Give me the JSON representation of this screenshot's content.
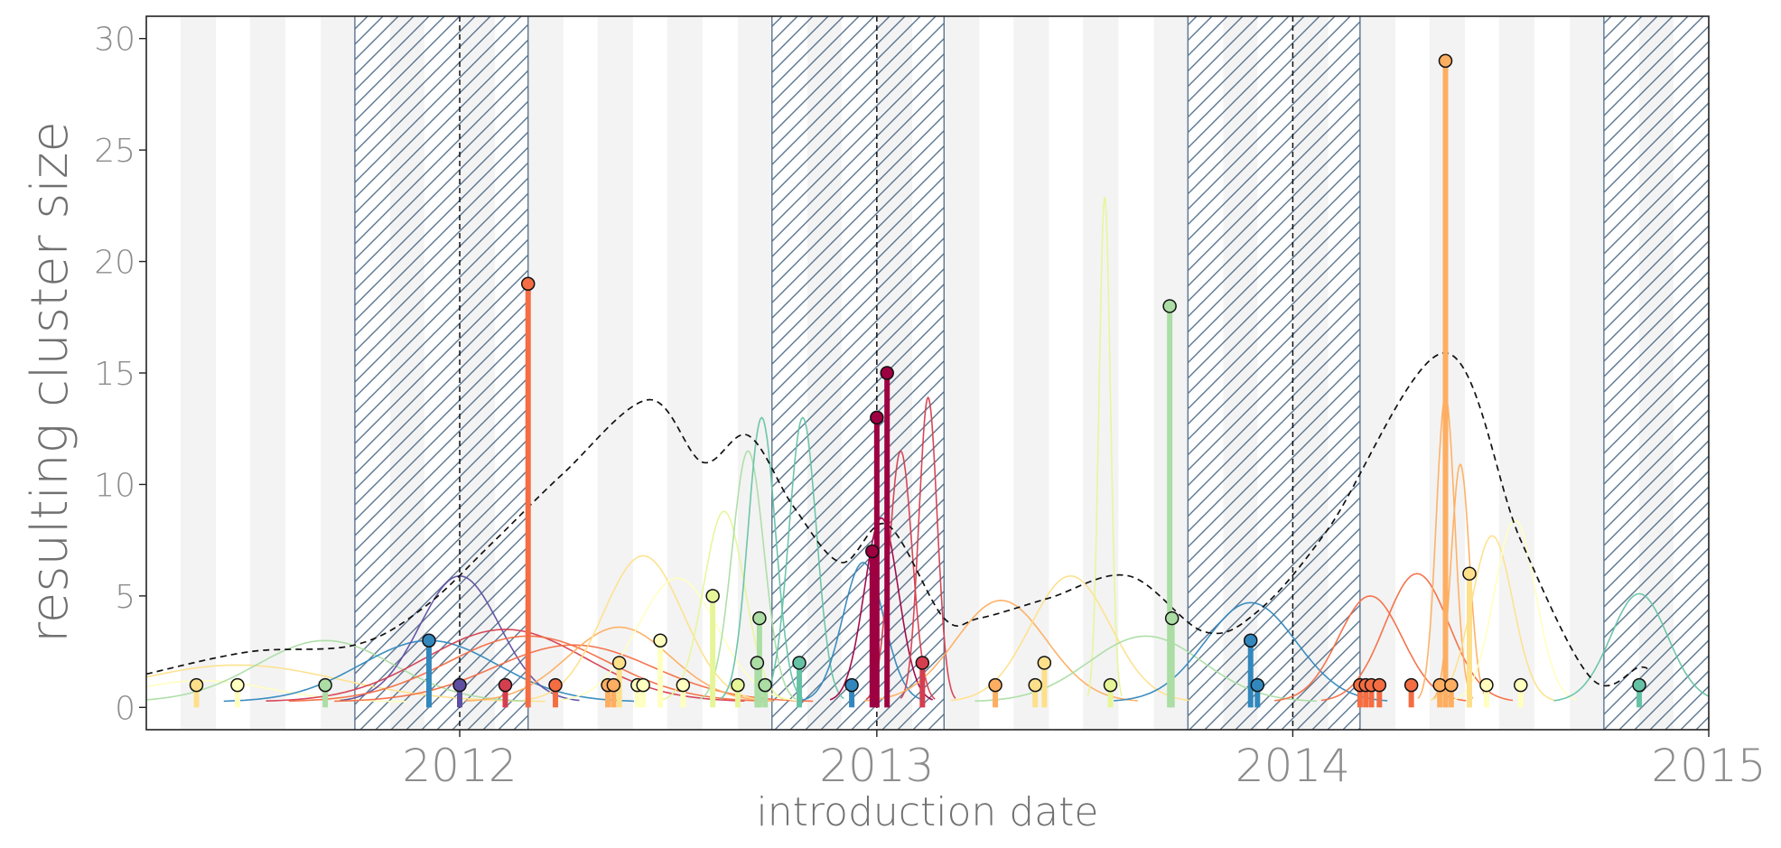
{
  "chart_data": {
    "type": "scatter",
    "title": "",
    "xlabel": "introduction date",
    "ylabel": "resulting cluster size",
    "xlim": [
      "2011-04-01",
      "2015-01-01"
    ],
    "ylim": [
      -1,
      31
    ],
    "x_ticks": [
      "2012",
      "2013",
      "2014",
      "2015"
    ],
    "y_ticks": [
      0,
      5,
      10,
      15,
      20,
      25,
      30
    ],
    "grid": "alternating monthly bands",
    "legend": "none",
    "shaded_periods": [
      {
        "start": "2011-10-01",
        "end": "2012-03-01"
      },
      {
        "start": "2012-10-01",
        "end": "2013-03-01"
      },
      {
        "start": "2013-10-01",
        "end": "2014-03-01"
      },
      {
        "start": "2014-10-01",
        "end": "2015-01-01"
      }
    ],
    "season_peaks": [
      "2012-01-01",
      "2013-01-01",
      "2014-01-01"
    ],
    "points": [
      {
        "date": "2011-05-15",
        "size": 1,
        "color": "#fee08b"
      },
      {
        "date": "2011-06-20",
        "size": 1,
        "color": "#ffffbf"
      },
      {
        "date": "2011-09-05",
        "size": 1,
        "color": "#abdda4"
      },
      {
        "date": "2011-12-05",
        "size": 3,
        "color": "#3288bd"
      },
      {
        "date": "2012-01-01",
        "size": 1,
        "color": "#5e4fa2"
      },
      {
        "date": "2012-02-10",
        "size": 1,
        "color": "#d53e4f"
      },
      {
        "date": "2012-03-01",
        "size": 19,
        "color": "#f46d43"
      },
      {
        "date": "2012-03-25",
        "size": 1,
        "color": "#f46d43"
      },
      {
        "date": "2012-05-10",
        "size": 1,
        "color": "#fdae61"
      },
      {
        "date": "2012-05-15",
        "size": 1,
        "color": "#fdae61"
      },
      {
        "date": "2012-05-20",
        "size": 2,
        "color": "#fee08b"
      },
      {
        "date": "2012-06-05",
        "size": 1,
        "color": "#ffffbf"
      },
      {
        "date": "2012-06-10",
        "size": 1,
        "color": "#ffffbf"
      },
      {
        "date": "2012-06-25",
        "size": 3,
        "color": "#ffffbf"
      },
      {
        "date": "2012-07-15",
        "size": 1,
        "color": "#ffffbf"
      },
      {
        "date": "2012-08-10",
        "size": 5,
        "color": "#e6f598"
      },
      {
        "date": "2012-09-01",
        "size": 1,
        "color": "#e6f598"
      },
      {
        "date": "2012-09-18",
        "size": 2,
        "color": "#abdda4"
      },
      {
        "date": "2012-09-20",
        "size": 4,
        "color": "#abdda4"
      },
      {
        "date": "2012-09-25",
        "size": 1,
        "color": "#abdda4"
      },
      {
        "date": "2012-10-25",
        "size": 2,
        "color": "#66c2a5"
      },
      {
        "date": "2012-12-10",
        "size": 1,
        "color": "#3288bd"
      },
      {
        "date": "2012-12-28",
        "size": 7,
        "color": "#9e0142"
      },
      {
        "date": "2013-01-01",
        "size": 13,
        "color": "#9e0142"
      },
      {
        "date": "2013-01-10",
        "size": 15,
        "color": "#9e0142"
      },
      {
        "date": "2013-02-10",
        "size": 2,
        "color": "#d53e4f"
      },
      {
        "date": "2013-04-15",
        "size": 1,
        "color": "#fdae61"
      },
      {
        "date": "2013-05-20",
        "size": 1,
        "color": "#fee08b"
      },
      {
        "date": "2013-05-28",
        "size": 2,
        "color": "#fee08b"
      },
      {
        "date": "2013-07-25",
        "size": 1,
        "color": "#e6f598"
      },
      {
        "date": "2013-09-15",
        "size": 18,
        "color": "#abdda4"
      },
      {
        "date": "2013-09-17",
        "size": 4,
        "color": "#abdda4"
      },
      {
        "date": "2013-11-25",
        "size": 3,
        "color": "#3288bd"
      },
      {
        "date": "2013-12-01",
        "size": 1,
        "color": "#3288bd"
      },
      {
        "date": "2014-03-01",
        "size": 1,
        "color": "#f46d43"
      },
      {
        "date": "2014-03-06",
        "size": 1,
        "color": "#f46d43"
      },
      {
        "date": "2014-03-11",
        "size": 1,
        "color": "#f46d43"
      },
      {
        "date": "2014-03-18",
        "size": 1,
        "color": "#f46d43"
      },
      {
        "date": "2014-04-15",
        "size": 1,
        "color": "#f46d43"
      },
      {
        "date": "2014-05-10",
        "size": 1,
        "color": "#fdae61"
      },
      {
        "date": "2014-05-15",
        "size": 29,
        "color": "#fdae61"
      },
      {
        "date": "2014-05-20",
        "size": 1,
        "color": "#fdae61"
      },
      {
        "date": "2014-06-05",
        "size": 6,
        "color": "#fee08b"
      },
      {
        "date": "2014-06-20",
        "size": 1,
        "color": "#ffffbf"
      },
      {
        "date": "2014-07-20",
        "size": 1,
        "color": "#ffffbf"
      },
      {
        "date": "2014-11-01",
        "size": 1,
        "color": "#66c2a5"
      }
    ],
    "density_total": [
      [
        "2011-04-01",
        1.5
      ],
      [
        "2011-07-01",
        2.5
      ],
      [
        "2011-10-01",
        2.8
      ],
      [
        "2011-12-01",
        4.5
      ],
      [
        "2012-02-01",
        7.5
      ],
      [
        "2012-04-01",
        10.5
      ],
      [
        "2012-06-15",
        13.8
      ],
      [
        "2012-08-01",
        11.0
      ],
      [
        "2012-09-10",
        12.2
      ],
      [
        "2012-10-20",
        9.0
      ],
      [
        "2012-12-01",
        6.5
      ],
      [
        "2013-01-10",
        8.2
      ],
      [
        "2013-03-01",
        4.0
      ],
      [
        "2013-04-01",
        4.0
      ],
      [
        "2013-06-01",
        4.9
      ],
      [
        "2013-08-10",
        5.9
      ],
      [
        "2013-10-15",
        3.4
      ],
      [
        "2013-12-01",
        4.3
      ],
      [
        "2014-02-01",
        8.0
      ],
      [
        "2014-05-15",
        15.9
      ],
      [
        "2014-07-20",
        7.5
      ],
      [
        "2014-09-20",
        1.3
      ],
      [
        "2014-11-01",
        1.8
      ],
      [
        "2014-11-10",
        1.6
      ]
    ],
    "density_curves": [
      {
        "peak": "2011-05-20",
        "height": 1.2,
        "width": 60,
        "color": "#ffffbf"
      },
      {
        "peak": "2011-06-20",
        "height": 1.9,
        "width": 90,
        "color": "#fee08b"
      },
      {
        "peak": "2011-09-05",
        "height": 3.0,
        "width": 60,
        "color": "#abdda4"
      },
      {
        "peak": "2011-12-05",
        "height": 3.0,
        "width": 60,
        "color": "#3288bd"
      },
      {
        "peak": "2012-01-01",
        "height": 5.9,
        "width": 35,
        "color": "#5e4fa2"
      },
      {
        "peak": "2012-02-10",
        "height": 3.5,
        "width": 70,
        "color": "#d53e4f"
      },
      {
        "peak": "2012-03-01",
        "height": 3.2,
        "width": 70,
        "color": "#f46d43"
      },
      {
        "peak": "2012-04-10",
        "height": 2.8,
        "width": 70,
        "color": "#f46d43"
      },
      {
        "peak": "2012-05-20",
        "height": 3.6,
        "width": 45,
        "color": "#fdae61"
      },
      {
        "peak": "2012-06-10",
        "height": 6.8,
        "width": 35,
        "color": "#fee08b"
      },
      {
        "peak": "2012-07-10",
        "height": 5.8,
        "width": 35,
        "color": "#ffffbf"
      },
      {
        "peak": "2012-08-20",
        "height": 8.8,
        "width": 18,
        "color": "#e6f598"
      },
      {
        "peak": "2012-09-10",
        "height": 11.5,
        "width": 14,
        "color": "#abdda4"
      },
      {
        "peak": "2012-09-22",
        "height": 13.0,
        "width": 12,
        "color": "#66c2a5"
      },
      {
        "peak": "2012-10-28",
        "height": 13.0,
        "width": 12,
        "color": "#66c2a5"
      },
      {
        "peak": "2012-12-20",
        "height": 6.5,
        "width": 18,
        "color": "#3288bd"
      },
      {
        "peak": "2013-01-05",
        "height": 8.5,
        "width": 15,
        "color": "#9e0142"
      },
      {
        "peak": "2013-01-22",
        "height": 11.5,
        "width": 10,
        "color": "#d53e4f"
      },
      {
        "peak": "2013-02-15",
        "height": 13.9,
        "width": 8,
        "color": "#d53e4f"
      },
      {
        "peak": "2013-04-20",
        "height": 4.8,
        "width": 40,
        "color": "#fdae61"
      },
      {
        "peak": "2013-06-20",
        "height": 5.9,
        "width": 35,
        "color": "#fee08b"
      },
      {
        "peak": "2013-07-20",
        "height": 22.9,
        "width": 5,
        "color": "#e6f598"
      },
      {
        "peak": "2013-08-25",
        "height": 3.2,
        "width": 50,
        "color": "#abdda4"
      },
      {
        "peak": "2013-11-25",
        "height": 4.7,
        "width": 40,
        "color": "#3288bd"
      },
      {
        "peak": "2014-03-10",
        "height": 5.0,
        "width": 28,
        "color": "#f46d43"
      },
      {
        "peak": "2014-04-20",
        "height": 6.0,
        "width": 28,
        "color": "#f46d43"
      },
      {
        "peak": "2014-05-15",
        "height": 14.0,
        "width": 8,
        "color": "#fdae61"
      },
      {
        "peak": "2014-05-28",
        "height": 10.9,
        "width": 8,
        "color": "#fdae61"
      },
      {
        "peak": "2014-06-25",
        "height": 7.7,
        "width": 18,
        "color": "#fee08b"
      },
      {
        "peak": "2014-07-15",
        "height": 8.4,
        "width": 18,
        "color": "#ffffbf"
      },
      {
        "peak": "2014-11-01",
        "height": 5.1,
        "width": 25,
        "color": "#66c2a5"
      }
    ]
  }
}
